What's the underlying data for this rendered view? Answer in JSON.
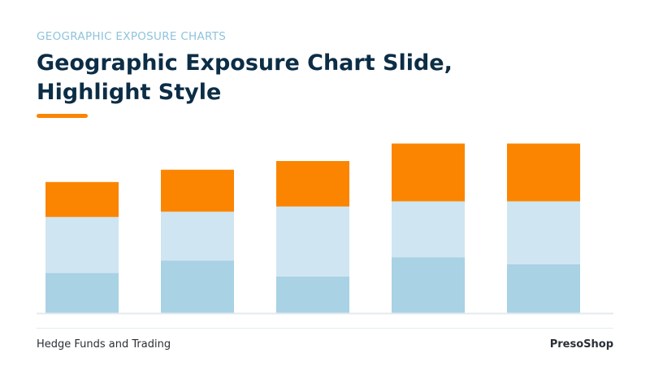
{
  "slide": {
    "kicker": "GEOGRAPHIC EXPOSURE CHARTS",
    "title": "Geographic Exposure Chart Slide, Highlight Style",
    "footer_left": "Hedge Funds and Trading",
    "footer_right": "PresoShop"
  },
  "colors": {
    "kicker": "#8fc3dc",
    "title": "#0c2d46",
    "accent": "#fb8500",
    "series_bottom": "#a9d2e4",
    "series_middle": "#cfe5f1",
    "series_top": "#fb8500",
    "axis": "#e3eaee"
  },
  "chart_data": {
    "type": "bar",
    "stacked": true,
    "categories": [
      "",
      "",
      "",
      "",
      ""
    ],
    "series": [
      {
        "values": [
          23,
          30,
          21,
          32,
          28
        ]
      },
      {
        "values": [
          32,
          28,
          40,
          32,
          36
        ]
      },
      {
        "values": [
          20,
          24,
          26,
          33,
          33
        ]
      }
    ],
    "ylim": [
      0,
      100
    ],
    "grid": false,
    "legend": "none"
  }
}
